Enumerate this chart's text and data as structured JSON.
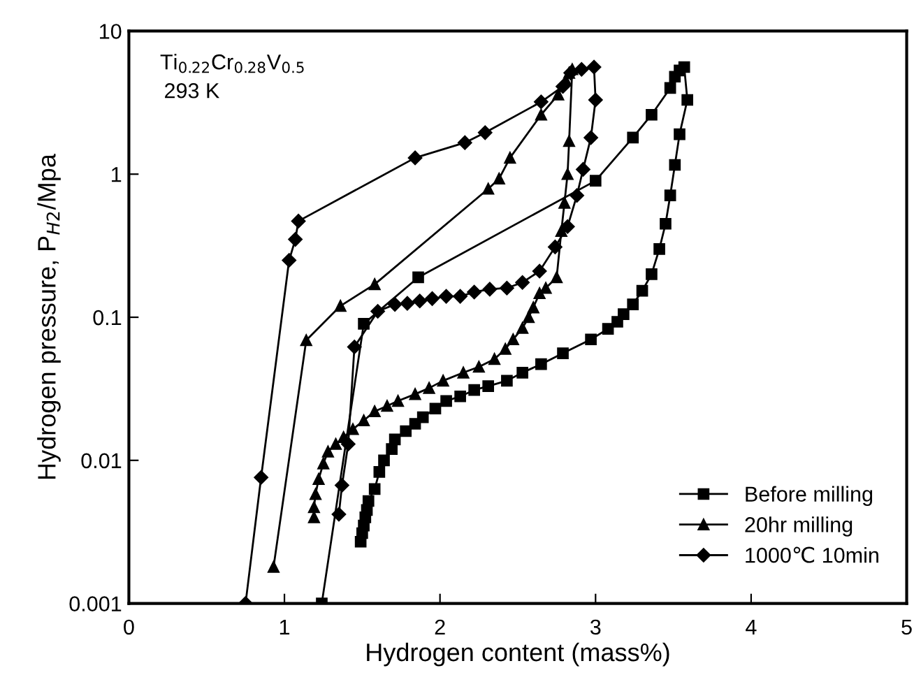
{
  "chart_data": {
    "type": "line",
    "xlabel": "Hydrogen content (mass%)",
    "ylabel": "Hydrogen pressure, P$_{H2}$/Mpa",
    "log": "y",
    "xlim": [
      0,
      5
    ],
    "ylim": [
      0.001,
      10
    ],
    "xticks": [
      0,
      1,
      2,
      3,
      4,
      5
    ],
    "yticks": [
      0.001,
      0.01,
      0.1,
      1,
      10
    ],
    "grid": false,
    "legend": "bottom right",
    "annotations": [
      "Ti$_{0.22}$Cr$_{0.28}$V$_{0.5}$",
      "293 K"
    ],
    "series": [
      {
        "name": "Before milling",
        "color": "#000000",
        "marker": "square",
        "x": [
          1.24,
          1.51,
          1.86,
          3.0,
          3.24,
          3.36,
          3.48,
          3.51,
          3.54,
          3.57,
          3.59,
          3.54,
          3.51,
          3.48,
          3.45,
          3.41,
          3.36,
          3.3,
          3.24,
          3.18,
          3.14,
          3.08,
          2.97,
          2.79,
          2.65,
          2.53,
          2.43,
          2.31,
          2.22,
          2.13,
          2.04,
          1.97,
          1.89,
          1.84,
          1.78,
          1.71,
          1.69,
          1.64,
          1.61,
          1.58,
          1.54,
          1.53,
          1.52,
          1.51,
          1.5,
          1.49
        ],
        "values": [
          0.001,
          0.09,
          0.19,
          0.9,
          1.8,
          2.6,
          4.0,
          4.8,
          5.3,
          5.6,
          3.3,
          1.9,
          1.16,
          0.71,
          0.45,
          0.3,
          0.2,
          0.153,
          0.123,
          0.105,
          0.093,
          0.083,
          0.07,
          0.056,
          0.047,
          0.041,
          0.036,
          0.033,
          0.031,
          0.028,
          0.026,
          0.023,
          0.02,
          0.018,
          0.016,
          0.014,
          0.012,
          0.01,
          0.0083,
          0.0063,
          0.0052,
          0.0045,
          0.004,
          0.0035,
          0.0031,
          0.0027
        ]
      },
      {
        "name": "20hr milling",
        "color": "#000000",
        "marker": "triangle",
        "x": [
          0.93,
          1.14,
          1.36,
          1.58,
          2.31,
          2.38,
          2.45,
          2.65,
          2.76,
          2.81,
          2.83,
          2.85,
          2.83,
          2.82,
          2.8,
          2.78,
          2.75,
          2.68,
          2.64,
          2.6,
          2.57,
          2.53,
          2.47,
          2.42,
          2.35,
          2.25,
          2.15,
          2.02,
          1.93,
          1.84,
          1.73,
          1.66,
          1.58,
          1.51,
          1.44,
          1.38,
          1.33,
          1.28,
          1.25,
          1.22,
          1.2,
          1.19,
          1.19
        ],
        "values": [
          0.0018,
          0.069,
          0.12,
          0.17,
          0.79,
          0.93,
          1.3,
          2.6,
          3.6,
          4.5,
          5.1,
          5.4,
          1.7,
          1.0,
          0.63,
          0.4,
          0.19,
          0.16,
          0.147,
          0.117,
          0.1,
          0.084,
          0.07,
          0.06,
          0.051,
          0.045,
          0.041,
          0.036,
          0.032,
          0.029,
          0.026,
          0.024,
          0.022,
          0.019,
          0.0165,
          0.0145,
          0.013,
          0.0115,
          0.0095,
          0.0074,
          0.0058,
          0.0047,
          0.004
        ]
      },
      {
        "name": "1000℃ 10min",
        "color": "#000000",
        "marker": "diamond",
        "x": [
          0.75,
          0.85,
          1.03,
          1.07,
          1.09,
          1.84,
          2.16,
          2.29,
          2.65,
          2.79,
          2.84,
          2.91,
          2.99,
          3.0,
          2.97,
          2.92,
          2.88,
          2.82,
          2.74,
          2.64,
          2.53,
          2.43,
          2.32,
          2.22,
          2.13,
          2.04,
          1.95,
          1.87,
          1.79,
          1.71,
          1.6,
          1.45,
          1.41,
          1.37,
          1.35
        ],
        "values": [
          0.001,
          0.0076,
          0.25,
          0.35,
          0.47,
          1.3,
          1.66,
          1.95,
          3.2,
          4.1,
          5.1,
          5.4,
          5.6,
          3.3,
          1.8,
          1.08,
          0.71,
          0.43,
          0.31,
          0.21,
          0.175,
          0.16,
          0.157,
          0.15,
          0.14,
          0.14,
          0.135,
          0.13,
          0.125,
          0.123,
          0.11,
          0.062,
          0.013,
          0.0067,
          0.0042
        ]
      }
    ]
  }
}
